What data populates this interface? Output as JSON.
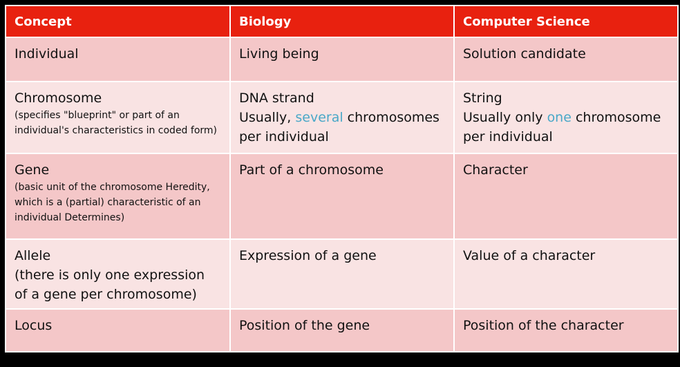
{
  "colors": {
    "header_bg": "#e8210f",
    "row_dark": "#f4c7c8",
    "row_light": "#f9e3e3",
    "highlight": "#4aa8c8"
  },
  "table": {
    "headers": [
      "Concept",
      "Biology",
      "Computer Science"
    ],
    "rows": [
      {
        "concept": "Individual",
        "biology": "Living being",
        "cs": "Solution candidate"
      },
      {
        "concept": "Chromosome",
        "concept_note": "(specifies \"blueprint\" or part of an individual's characteristics in coded form)",
        "biology_line1": "DNA strand",
        "biology_line2_pre": "Usually, ",
        "biology_line2_hl": "several",
        "biology_line2_post": " chromosomes per individual",
        "cs_line1": "String",
        "cs_line2_pre": "Usually only ",
        "cs_line2_hl": "one",
        "cs_line2_post": " chromosome per individual"
      },
      {
        "concept": "Gene",
        "concept_note": "(basic unit of the chromosome Heredity, which is a (partial) characteristic of an individual Determines)",
        "biology": "Part of a chromosome",
        "cs": "Character"
      },
      {
        "concept": "Allele",
        "concept_note": "(there is only one expression of a gene per chromosome)",
        "biology": "Expression of a gene",
        "cs": "Value of a character"
      },
      {
        "concept": "Locus",
        "biology": "Position of the gene",
        "cs": "Position of the character"
      }
    ]
  }
}
